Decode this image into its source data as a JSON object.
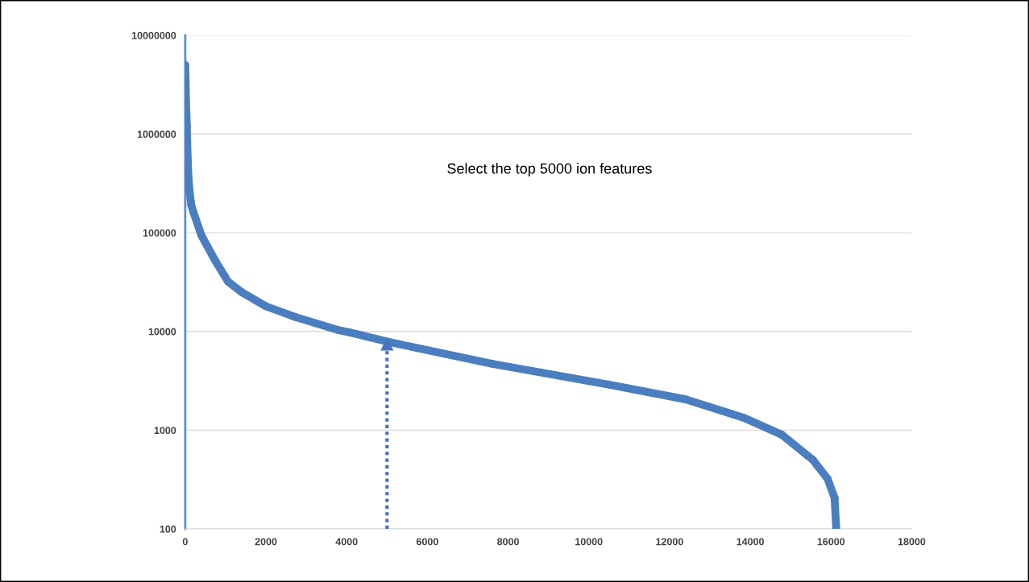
{
  "chart_data": {
    "type": "line",
    "log": "y",
    "grid": "y",
    "marker": "circle",
    "xlim": [
      0,
      18000
    ],
    "xticks": [
      0,
      2000,
      4000,
      6000,
      8000,
      10000,
      12000,
      14000,
      16000,
      18000
    ],
    "ylim": [
      100,
      10000000
    ],
    "yticks": [
      100,
      1000,
      10000,
      100000,
      1000000,
      10000000
    ],
    "annotations": [
      "Select the top 5000 ion features"
    ],
    "series": [
      {
        "color": "#4a7ebf",
        "x": [
          0,
          10,
          20,
          30,
          40,
          50,
          70,
          100,
          150,
          200,
          400,
          733,
          1060,
          1400,
          2000,
          2730,
          3800,
          4060,
          5060,
          7610,
          10490,
          12400,
          13830,
          14780,
          15550,
          15920,
          16090,
          16130
        ],
        "values": [
          5000000,
          3400000,
          2000000,
          1600000,
          1200000,
          800000,
          450000,
          280000,
          190000,
          163000,
          94000,
          53000,
          32000,
          25000,
          18000,
          14000,
          10300,
          9800,
          7800,
          4700,
          2900,
          2050,
          1340,
          900,
          500,
          320,
          205,
          100
        ]
      },
      {
        "color": "#4472c4",
        "marker": "triangle",
        "line_style": "dotted",
        "x": [
          5000,
          5000
        ],
        "values": [
          100,
          7400
        ]
      }
    ]
  }
}
